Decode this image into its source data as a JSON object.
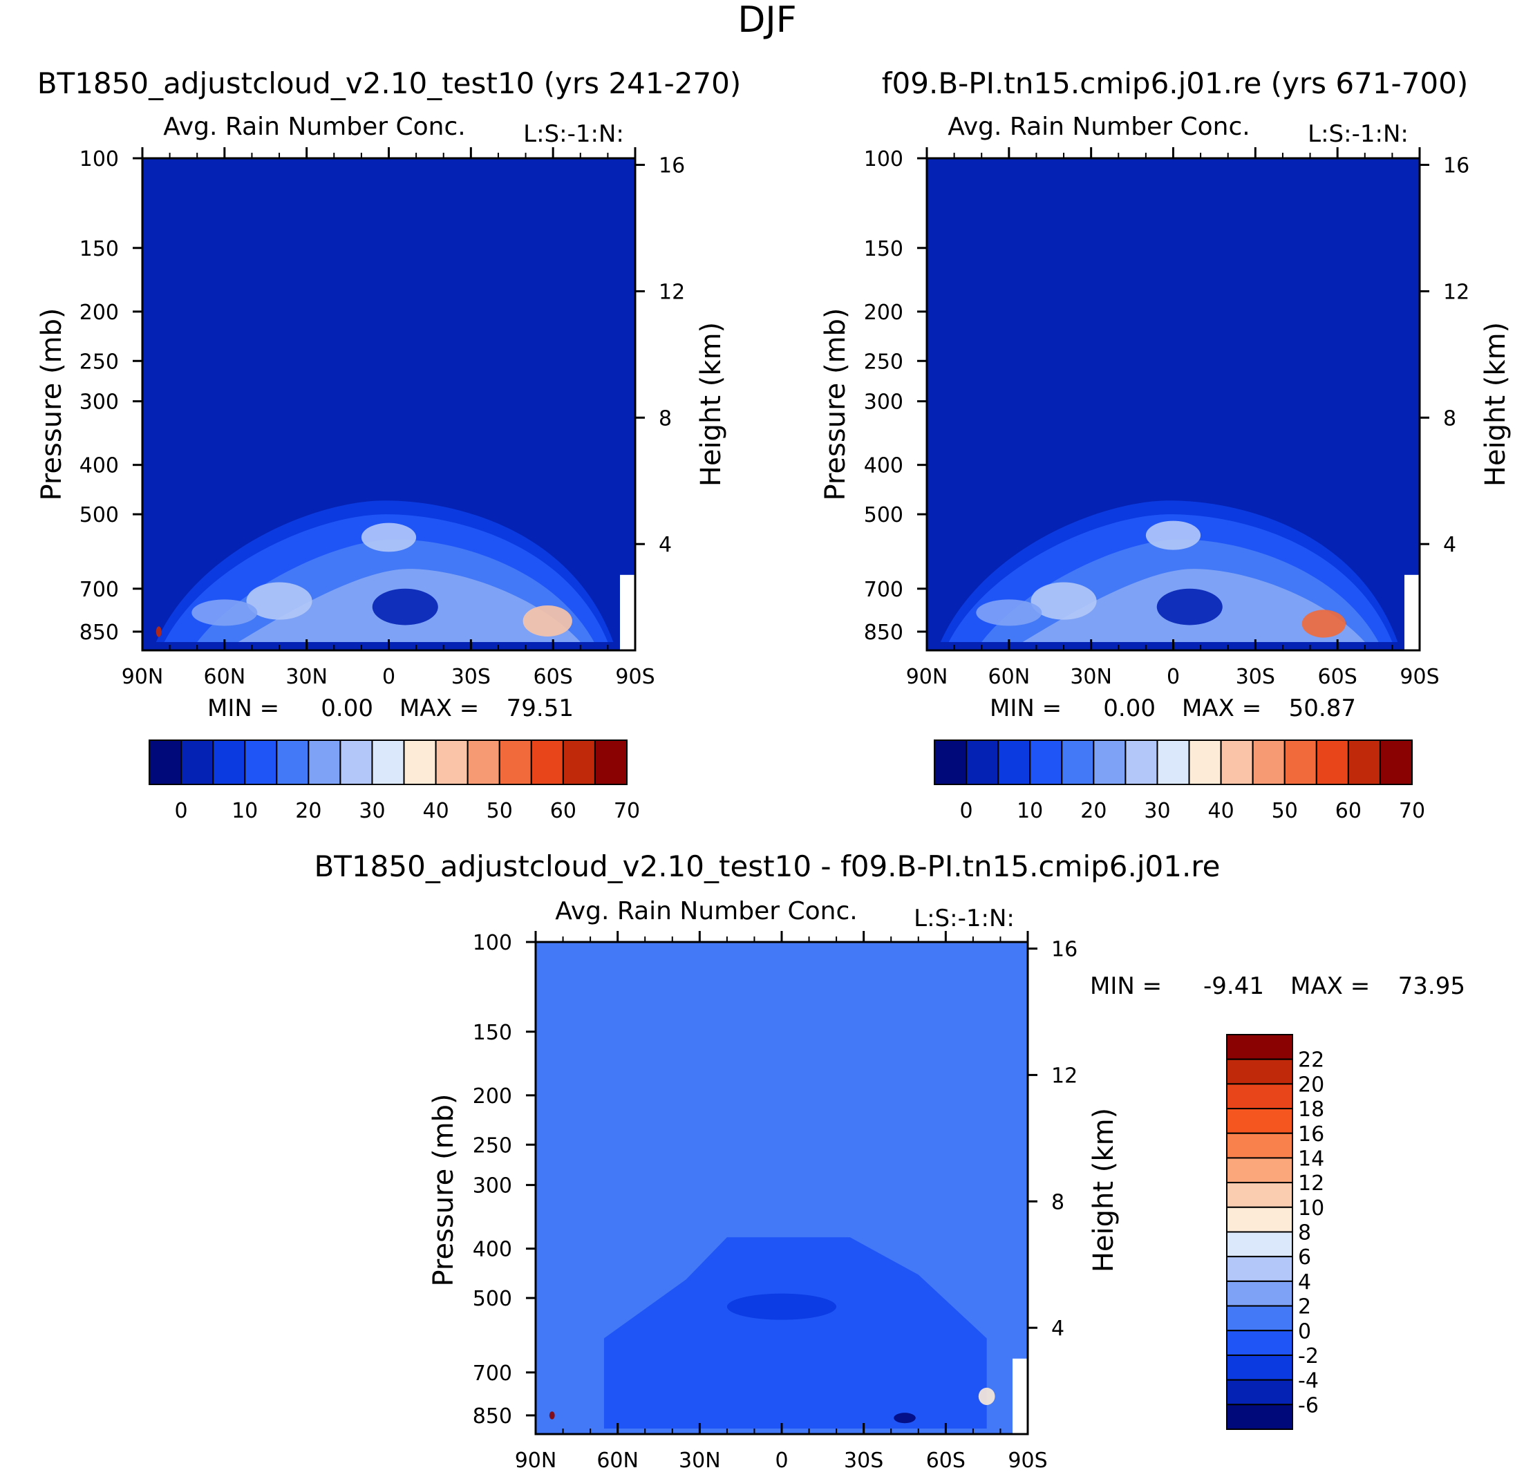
{
  "figure": {
    "title": "DJF"
  },
  "chart_data": [
    {
      "type": "heatmap",
      "case": "BT1850_adjustcloud_v2.10_test10 (yrs 241-270)",
      "variable": "Avg. Rain Number Conc.",
      "tag": "L:S:-1:N:",
      "stats": {
        "min_label": "MIN =",
        "min": "0.00",
        "max_label": "MAX =",
        "max": "79.51"
      },
      "x_ticks": [
        "90N",
        "60N",
        "30N",
        "0",
        "30S",
        "60S",
        "90S"
      ],
      "y_left_label": "Pressure (mb)",
      "y_left_ticks": [
        "100",
        "150",
        "200",
        "250",
        "300",
        "400",
        "500",
        "700",
        "850"
      ],
      "y_right_label": "Height (km)",
      "y_right_ticks": [
        "16",
        "12",
        "8",
        "4"
      ],
      "colorbar_labels": [
        "0",
        "10",
        "20",
        "30",
        "40",
        "50",
        "60",
        "70"
      ],
      "colors": [
        "#00097a",
        "#0422b4",
        "#0a3ae0",
        "#1f55f7",
        "#4379f6",
        "#7ea2f6",
        "#b3c8f8",
        "#dbe8fb",
        "#fdebd8",
        "#f9c4a8",
        "#f59a72",
        "#f16a3b",
        "#e9451a",
        "#c02a0b",
        "#8a0202"
      ],
      "features": [
        {
          "lat": -58,
          "p": 810,
          "value": 44,
          "spread_lat": 9,
          "spread_p": 55
        },
        {
          "lat": 0,
          "p": 555,
          "value": 28,
          "spread_lat": 10,
          "spread_p": 35
        },
        {
          "lat": -6,
          "p": 760,
          "value": 3,
          "spread_lat": 12,
          "spread_p": 60
        },
        {
          "lat": 40,
          "p": 740,
          "value": 26,
          "spread_lat": 12,
          "spread_p": 60
        },
        {
          "lat": 60,
          "p": 780,
          "value": 24,
          "spread_lat": 12,
          "spread_p": 45
        },
        {
          "lat": 84,
          "p": 850,
          "value": 60,
          "spread_lat": 1,
          "spread_p": 20
        }
      ]
    },
    {
      "type": "heatmap",
      "case": "f09.B-PI.tn15.cmip6.j01.re (yrs 671-700)",
      "variable": "Avg. Rain Number Conc.",
      "tag": "L:S:-1:N:",
      "stats": {
        "min_label": "MIN =",
        "min": "0.00",
        "max_label": "MAX =",
        "max": "50.87"
      },
      "x_ticks": [
        "90N",
        "60N",
        "30N",
        "0",
        "30S",
        "60S",
        "90S"
      ],
      "y_left_label": "Pressure (mb)",
      "y_left_ticks": [
        "100",
        "150",
        "200",
        "250",
        "300",
        "400",
        "500",
        "700",
        "850"
      ],
      "y_right_label": "Height (km)",
      "y_right_ticks": [
        "16",
        "12",
        "8",
        "4"
      ],
      "colorbar_labels": [
        "0",
        "10",
        "20",
        "30",
        "40",
        "50",
        "60",
        "70"
      ],
      "colors": [
        "#00097a",
        "#0422b4",
        "#0a3ae0",
        "#1f55f7",
        "#4379f6",
        "#7ea2f6",
        "#b3c8f8",
        "#dbe8fb",
        "#fdebd8",
        "#f9c4a8",
        "#f59a72",
        "#f16a3b",
        "#e9451a",
        "#c02a0b",
        "#8a0202"
      ],
      "features": [
        {
          "lat": -55,
          "p": 820,
          "value": 50,
          "spread_lat": 8,
          "spread_p": 50
        },
        {
          "lat": 0,
          "p": 550,
          "value": 28,
          "spread_lat": 10,
          "spread_p": 35
        },
        {
          "lat": -6,
          "p": 760,
          "value": 3,
          "spread_lat": 12,
          "spread_p": 60
        },
        {
          "lat": 40,
          "p": 740,
          "value": 26,
          "spread_lat": 12,
          "spread_p": 60
        },
        {
          "lat": 60,
          "p": 780,
          "value": 24,
          "spread_lat": 12,
          "spread_p": 45
        }
      ]
    },
    {
      "type": "heatmap",
      "case": "BT1850_adjustcloud_v2.10_test10 - f09.B-PI.tn15.cmip6.j01.re",
      "variable": "Avg. Rain Number Conc.",
      "tag": "L:S:-1:N:",
      "stats": {
        "min_label": "MIN =",
        "min": "-9.41",
        "max_label": "MAX =",
        "max": "73.95"
      },
      "x_ticks": [
        "90N",
        "60N",
        "30N",
        "0",
        "30S",
        "60S",
        "90S"
      ],
      "y_left_label": "Pressure (mb)",
      "y_left_ticks": [
        "100",
        "150",
        "200",
        "250",
        "300",
        "400",
        "500",
        "700",
        "850"
      ],
      "y_right_label": "Height (km)",
      "y_right_ticks": [
        "16",
        "12",
        "8",
        "4"
      ],
      "colorbar_labels": [
        "22",
        "20",
        "18",
        "16",
        "14",
        "12",
        "10",
        "8",
        "6",
        "4",
        "2",
        "0",
        "-2",
        "-4",
        "-6"
      ],
      "colors": [
        "#8a0202",
        "#c02a0b",
        "#e9451a",
        "#f5561f",
        "#f9814b",
        "#fba77b",
        "#fbcdb0",
        "#fdebd8",
        "#dbe8fb",
        "#b3c8f8",
        "#7ea2f6",
        "#4379f6",
        "#1f55f7",
        "#0a3ae0",
        "#0422b4",
        "#00097a"
      ],
      "features": [
        {
          "lat": 0,
          "p": 520,
          "value": -3.5,
          "spread_lat": 20,
          "spread_p": 30
        },
        {
          "lat": -45,
          "p": 860,
          "value": -7,
          "spread_lat": 4,
          "spread_p": 20
        },
        {
          "lat": -75,
          "p": 780,
          "value": 8,
          "spread_lat": 3,
          "spread_p": 30
        },
        {
          "lat": 84,
          "p": 850,
          "value": 22,
          "spread_lat": 1,
          "spread_p": 15
        }
      ]
    }
  ]
}
